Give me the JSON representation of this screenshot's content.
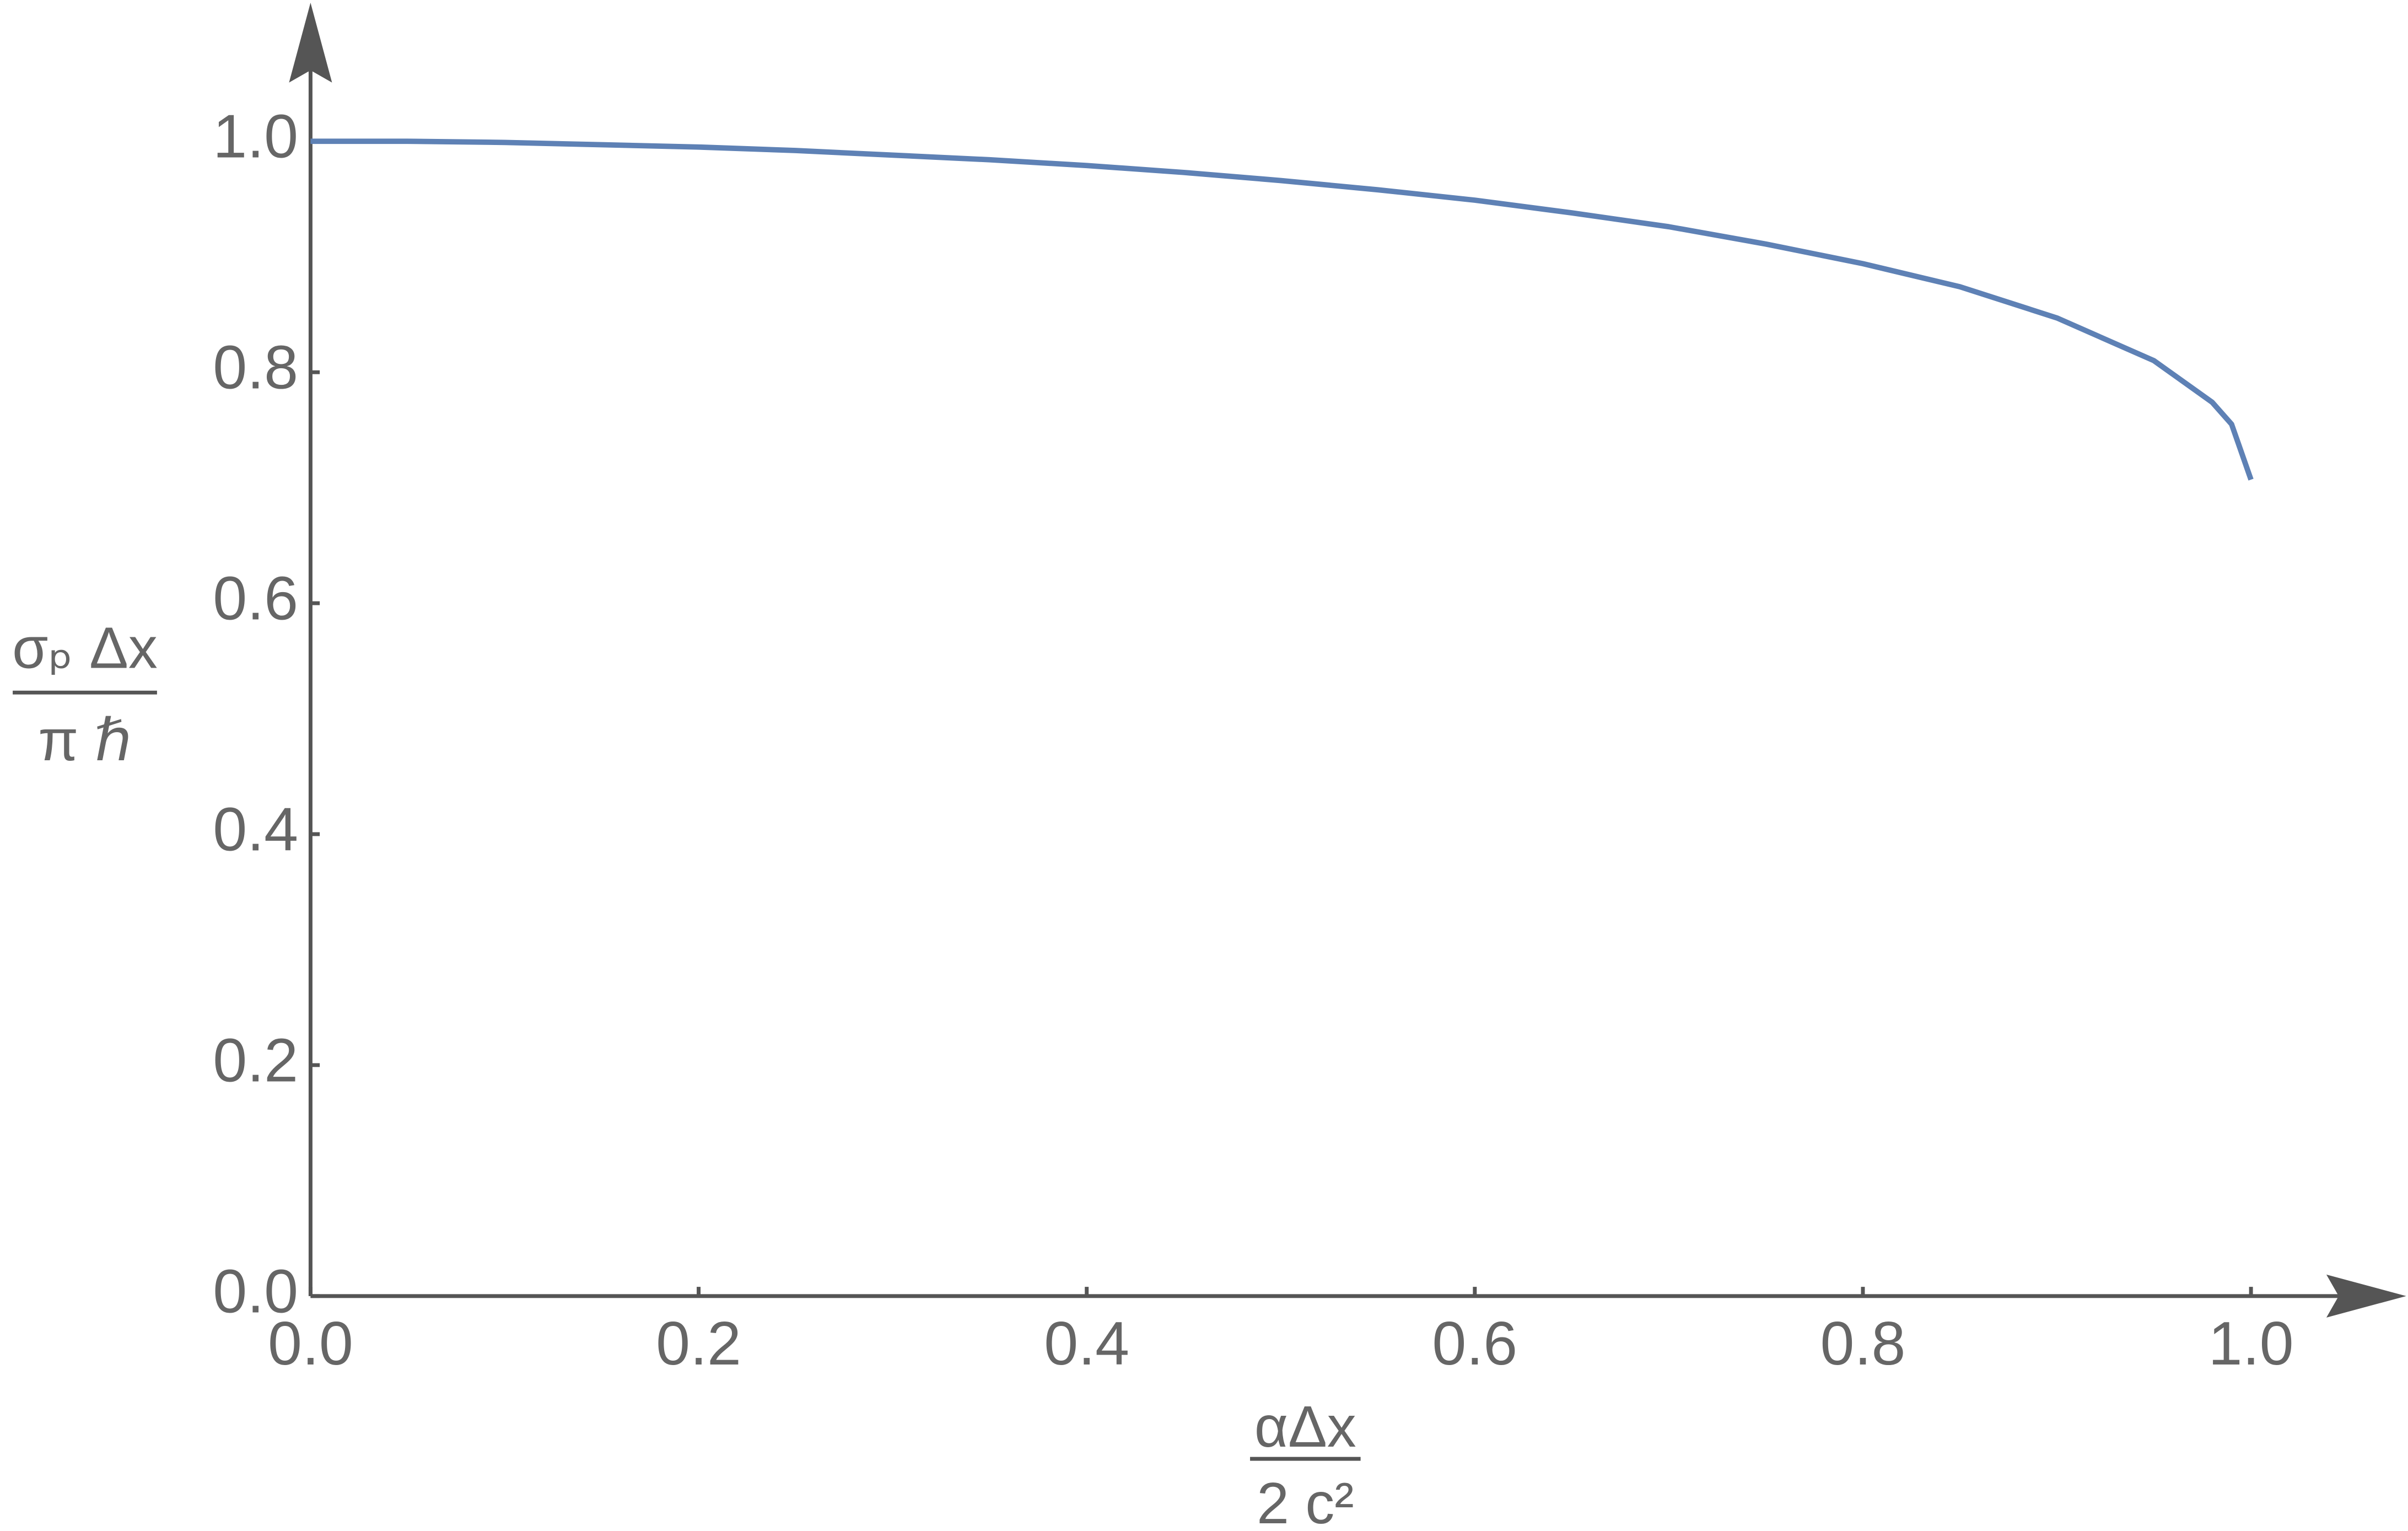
{
  "chart_data": {
    "type": "line",
    "x_label": {
      "numerator": "αΔx",
      "denominator": "2 c²"
    },
    "y_label": {
      "numerator": "σₚ Δx",
      "denominator": "π ℏ"
    },
    "x": [
      0,
      0.05,
      0.1,
      0.15,
      0.2,
      0.25,
      0.3,
      0.35,
      0.4,
      0.45,
      0.5,
      0.55,
      0.6,
      0.65,
      0.7,
      0.75,
      0.8,
      0.85,
      0.9,
      0.95,
      0.98,
      0.99,
      1
    ],
    "values": [
      1,
      1.0,
      0.999,
      0.997,
      0.995,
      0.992,
      0.988,
      0.984,
      0.979,
      0.973,
      0.966,
      0.958,
      0.949,
      0.938,
      0.926,
      0.911,
      0.894,
      0.874,
      0.847,
      0.81,
      0.774,
      0.755,
      0.707
    ],
    "color": "#5e81b5",
    "xlim": [
      0,
      1.08
    ],
    "ylim": [
      0,
      1.12
    ],
    "xticks": [
      {
        "value": 0,
        "label": "0.0"
      },
      0.2,
      0.4,
      0.6,
      0.8,
      {
        "value": 1,
        "label": "1.0"
      }
    ],
    "yticks": [
      {
        "value": 0,
        "label": "0.0"
      },
      0.2,
      0.4,
      0.6,
      0.8,
      {
        "value": 1,
        "label": "1.0"
      }
    ]
  }
}
